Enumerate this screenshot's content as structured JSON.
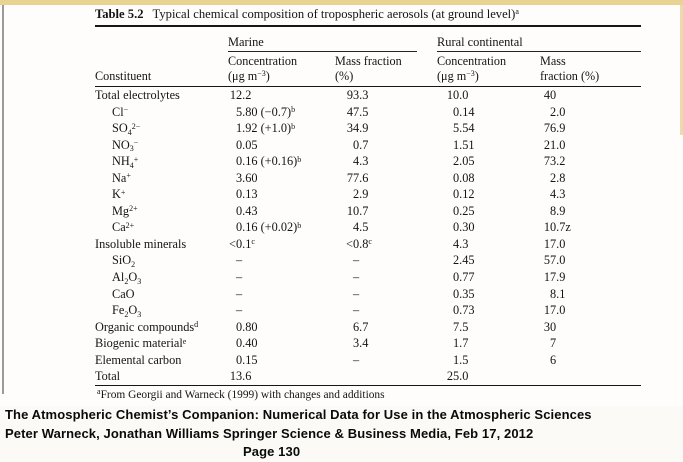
{
  "colors": {
    "scan_top_strip": "#e9d393",
    "scan_left_edge": "#9b9b9b",
    "scan_right_edge": "#e7d49c",
    "rule_color": "#161616",
    "text_color": "#141414"
  },
  "table": {
    "label": "Table 5.2",
    "title": "Typical chemical composition of tropospheric aerosols (at ground level)^a^",
    "groups": [
      {
        "label": "Marine"
      },
      {
        "label": "Rural continental"
      }
    ],
    "subheaders": {
      "constituent": "Constituent",
      "cols": [
        {
          "line1": "Concentration",
          "line2": "(μg m^−3^)"
        },
        {
          "line1": "Mass fraction",
          "line2": "(%)"
        },
        {
          "line1": "Concentration",
          "line2": "(μg m^−3^)"
        },
        {
          "line1": "Mass",
          "line2": "fraction (%)"
        }
      ]
    },
    "rows": [
      {
        "constituent": "Total electrolytes",
        "indent": false,
        "cells": [
          "12.2",
          "93.3",
          "10.0",
          "40"
        ]
      },
      {
        "constituent": "Cl^−^",
        "indent": true,
        "cells": [
          "5.80 (−0.7)^b^",
          "47.5",
          "0.14",
          "2.0"
        ]
      },
      {
        "constituent": "SO~4~^2−^",
        "indent": true,
        "cells": [
          "1.92 (+1.0)^b^",
          "34.9",
          "5.54",
          "76.9"
        ]
      },
      {
        "constituent": "NO~3~^−^",
        "indent": true,
        "cells": [
          "0.05",
          "0.7",
          "1.51",
          "21.0"
        ]
      },
      {
        "constituent": "NH~4~^+^",
        "indent": true,
        "cells": [
          "0.16 (+0.16)^b^",
          "4.3",
          "2.05",
          "73.2"
        ]
      },
      {
        "constituent": "Na^+^",
        "indent": true,
        "cells": [
          "3.60",
          "77.6",
          "0.08",
          "2.8"
        ]
      },
      {
        "constituent": "K^+^",
        "indent": true,
        "cells": [
          "0.13",
          "2.9",
          "0.12",
          "4.3"
        ]
      },
      {
        "constituent": "Mg^2+^",
        "indent": true,
        "cells": [
          "0.43",
          "10.7",
          "0.25",
          "8.9"
        ]
      },
      {
        "constituent": "Ca^2+^",
        "indent": true,
        "cells": [
          "0.16 (+0.02)^b^",
          "4.5",
          "0.30",
          "10.7z"
        ]
      },
      {
        "constituent": "Insoluble minerals",
        "indent": false,
        "cells": [
          "<0.1^c^",
          "<0.8^c^",
          "4.3",
          "17.0"
        ]
      },
      {
        "constituent": "SiO~2~",
        "indent": true,
        "cells": [
          "–",
          "–",
          "2.45",
          "57.0"
        ]
      },
      {
        "constituent": "Al~2~O~3~",
        "indent": true,
        "cells": [
          "–",
          "–",
          "0.77",
          "17.9"
        ]
      },
      {
        "constituent": "CaO",
        "indent": true,
        "cells": [
          "–",
          "–",
          "0.35",
          "8.1"
        ]
      },
      {
        "constituent": "Fe~2~O~3~",
        "indent": true,
        "cells": [
          "–",
          "–",
          "0.73",
          "17.0"
        ]
      },
      {
        "constituent": "Organic compounds^d^",
        "indent": false,
        "cells": [
          "0.80",
          "6.7",
          "7.5",
          "30"
        ]
      },
      {
        "constituent": "Biogenic material^e^",
        "indent": false,
        "cells": [
          "0.40",
          "3.4",
          "1.7",
          "7"
        ]
      },
      {
        "constituent": "Elemental carbon",
        "indent": false,
        "cells": [
          "0.15",
          "–",
          "1.5",
          "6"
        ]
      },
      {
        "constituent": "Total",
        "indent": false,
        "cells": [
          "13.6",
          "",
          "25.0",
          ""
        ]
      }
    ],
    "footnote": "^a^From Georgii and Warneck (1999) with changes and additions"
  },
  "caption": {
    "line1": "The Atmospheric Chemist’s Companion: Numerical Data for Use in the Atmospheric Sciences",
    "line2": "Peter Warneck, Jonathan Williams Springer Science & Business Media, Feb 17, 2012",
    "line3": "Page 130"
  }
}
